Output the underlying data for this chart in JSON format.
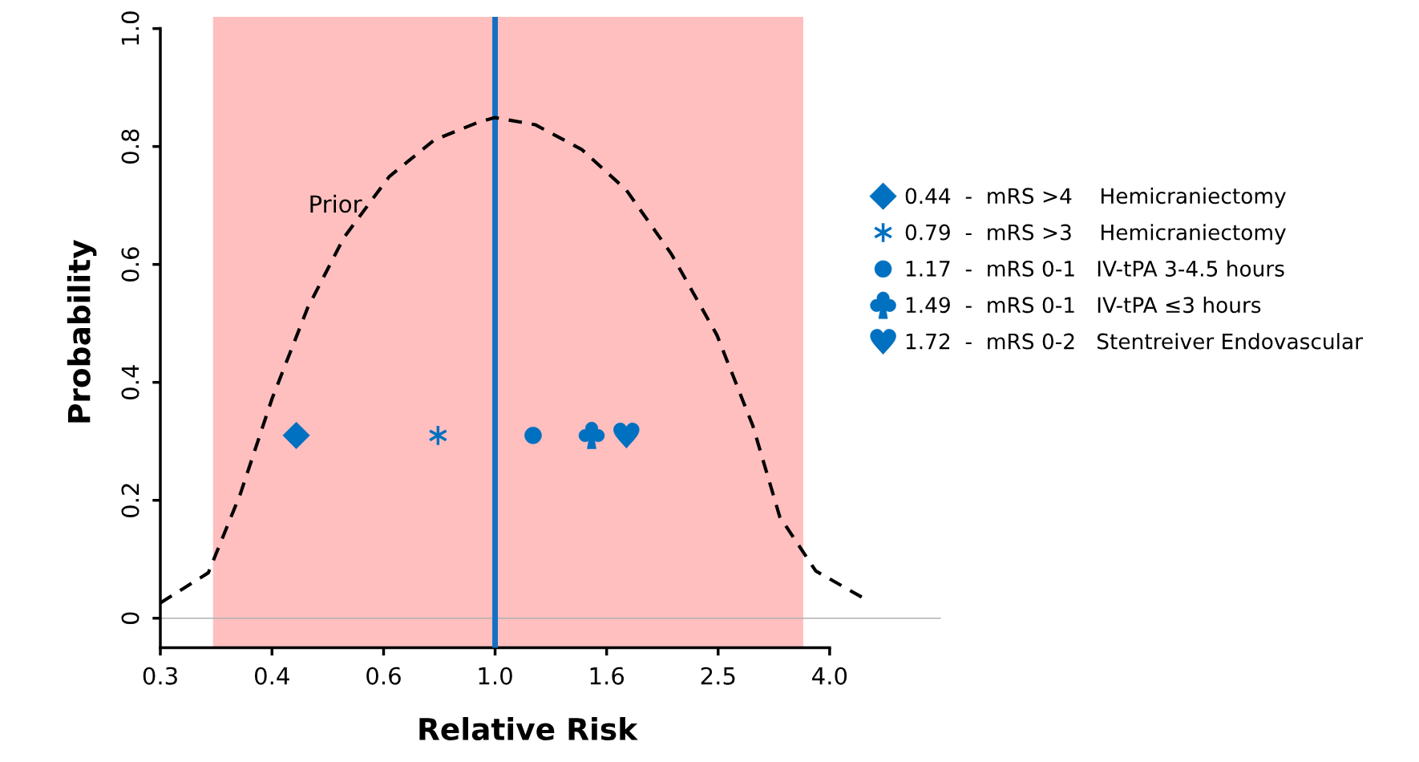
{
  "chart_data": {
    "type": "scatter",
    "xlabel": "Relative Risk",
    "ylabel": "Probability",
    "log": "x",
    "xlim": [
      0.251,
      6.3
    ],
    "ylim": [
      -0.05,
      1.02
    ],
    "xticks": [
      {
        "value": 0.251,
        "label": "0.3"
      },
      {
        "value": 0.398,
        "label": "0.4"
      },
      {
        "value": 0.631,
        "label": "0.6"
      },
      {
        "value": 1.0,
        "label": "1.0"
      },
      {
        "value": 1.585,
        "label": "1.6"
      },
      {
        "value": 2.512,
        "label": "2.5"
      },
      {
        "value": 3.981,
        "label": "4.0"
      }
    ],
    "yticks": [
      0,
      0.2,
      0.4,
      0.6,
      0.8,
      {
        "value": 1.0,
        "label": "1.0"
      }
    ],
    "grid": false,
    "legend": "right",
    "bands": [
      {
        "axis": "x",
        "from": 0.312,
        "to": 3.57,
        "color": "#ffbfbf"
      }
    ],
    "ref_lines": [
      {
        "axis": "y",
        "value": 0,
        "color": "#b0b0b0"
      },
      {
        "axis": "x",
        "value": 1.0,
        "color": "#1470c4"
      }
    ],
    "annotations": [
      "Prior"
    ],
    "series": [
      {
        "type": "line",
        "color": "#000000",
        "line_style": "dashed",
        "marker": "none",
        "x": [
          0.251,
          0.306,
          0.349,
          0.398,
          0.461,
          0.536,
          0.646,
          0.778,
          0.938,
          1.0,
          1.18,
          1.43,
          1.72,
          2.07,
          2.5,
          2.9,
          3.24,
          3.76,
          4.58
        ],
        "values": [
          0.026,
          0.077,
          0.21,
          0.372,
          0.526,
          0.646,
          0.749,
          0.811,
          0.842,
          0.849,
          0.837,
          0.795,
          0.726,
          0.618,
          0.48,
          0.326,
          0.172,
          0.08,
          0.034
        ]
      },
      {
        "name": "0.44  -  mRS >4    Hemicraniectomy",
        "color": "#0070c0",
        "marker": "diamond",
        "x": [
          0.44
        ],
        "values": [
          0.31
        ]
      },
      {
        "name": "0.79  -  mRS >3    Hemicraniectomy",
        "color": "#0070c0",
        "marker": "cross",
        "x": [
          0.79
        ],
        "values": [
          0.31
        ]
      },
      {
        "name": "1.17  -  mRS 0-1   IV-tPA 3-4.5 hours",
        "color": "#0070c0",
        "marker": "circle",
        "x": [
          1.17
        ],
        "values": [
          0.31
        ]
      },
      {
        "name": "1.49  -  mRS 0-1   IV-tPA ≤3 hours",
        "color": "#0070c0",
        "x": [
          1.49
        ],
        "values": [
          0.31
        ]
      },
      {
        "name": "1.72  -  mRS 0-2   Stentreiver Endovascular",
        "color": "#0070c0",
        "x": [
          1.72
        ],
        "values": [
          0.31
        ]
      }
    ]
  }
}
